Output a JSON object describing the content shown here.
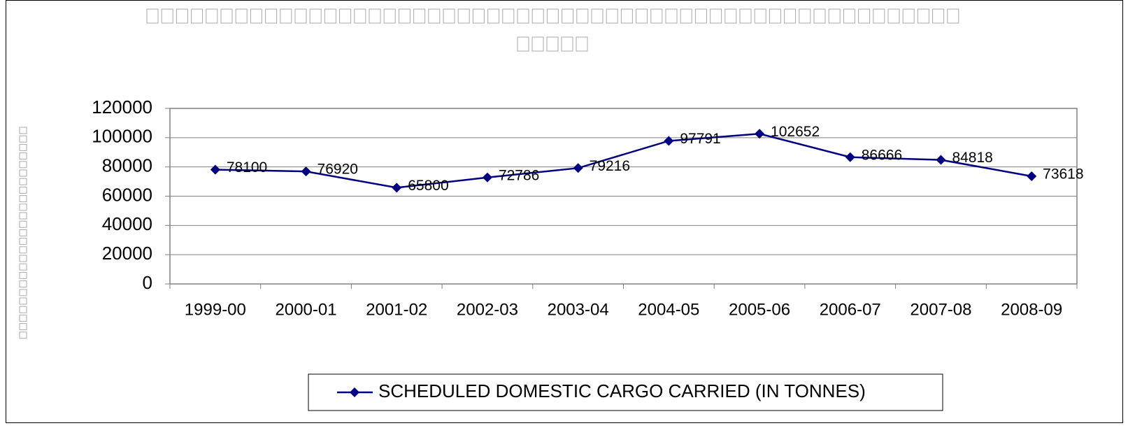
{
  "chart_data": {
    "type": "line",
    "categories": [
      "1999-00",
      "2000-01",
      "2001-02",
      "2002-03",
      "2003-04",
      "2004-05",
      "2005-06",
      "2006-07",
      "2007-08",
      "2008-09"
    ],
    "series": [
      {
        "name": "SCHEDULED DOMESTIC CARGO CARRIED (IN TONNES)",
        "color": "#000080",
        "values": [
          78100,
          76920,
          65800,
          72786,
          79216,
          97791,
          102652,
          86666,
          84818,
          73618
        ]
      }
    ],
    "ylim": [
      0,
      120000
    ],
    "yticks": [
      0,
      20000,
      40000,
      60000,
      80000,
      100000,
      120000
    ],
    "grid": true
  }
}
